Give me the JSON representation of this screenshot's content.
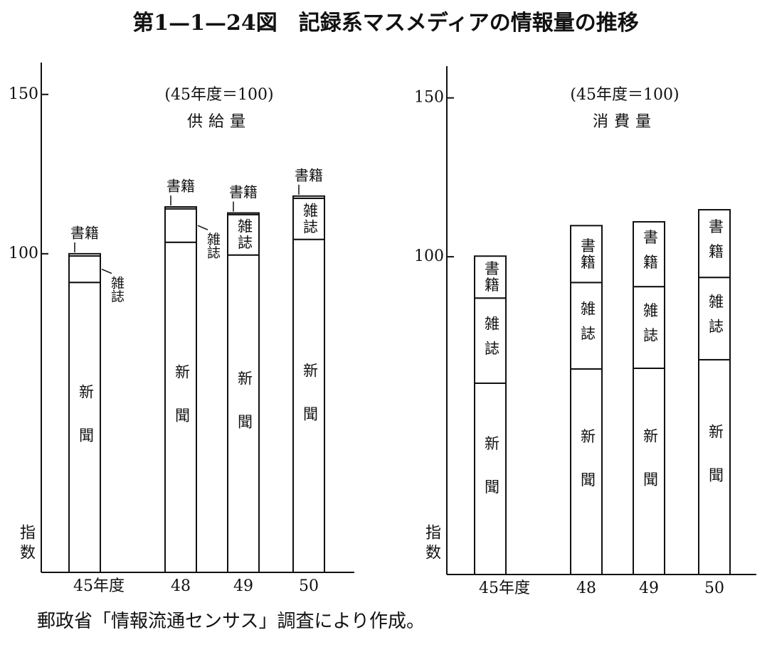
{
  "title": "第1—1—24図　記録系マスメディアの情報量の推移",
  "source": "郵政省「情報流通センサス」調査により作成。",
  "chart_data": [
    {
      "type": "bar",
      "stacked": true,
      "subtitle": "(45年度＝100)",
      "title": "供給量",
      "ylabel": "指数",
      "categories": [
        "45年度",
        "48",
        "49",
        "50"
      ],
      "series": [
        {
          "name": "新聞",
          "color": "#ffffff",
          "values": [
            91,
            103.6,
            99.6,
            104.5
          ]
        },
        {
          "name": "雑誌",
          "color": "#ffffff",
          "values": [
            8.3,
            10.5,
            12.7,
            12.9
          ]
        },
        {
          "name": "書籍",
          "color": "#ffffff",
          "values": [
            0.7,
            0.6,
            0.5,
            0.7
          ]
        }
      ],
      "ylim": [
        0,
        160
      ],
      "yticks": [
        100,
        150
      ]
    },
    {
      "type": "bar",
      "stacked": true,
      "subtitle": "(45年度＝100)",
      "title": "消費量",
      "ylabel": "指数",
      "categories": [
        "45年度",
        "48",
        "49",
        "50"
      ],
      "series": [
        {
          "name": "新聞",
          "color": "#ffffff",
          "values": [
            60.2,
            64.7,
            64.9,
            67.6
          ]
        },
        {
          "name": "雑誌",
          "color": "#ffffff",
          "values": [
            26.8,
            27.2,
            25.7,
            25.9
          ]
        },
        {
          "name": "書籍",
          "color": "#ffffff",
          "values": [
            13.2,
            17.9,
            20.4,
            21.3
          ]
        }
      ],
      "ylim": [
        0,
        160
      ],
      "yticks": [
        100,
        150
      ]
    }
  ]
}
